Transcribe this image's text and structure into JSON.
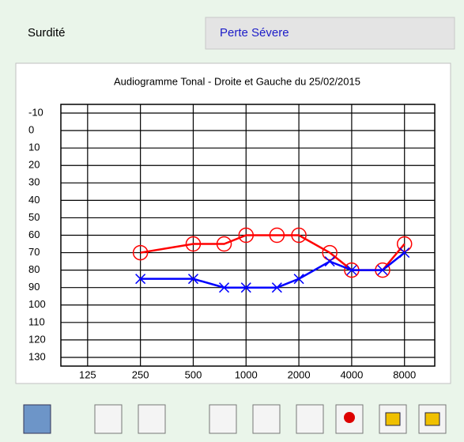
{
  "form": {
    "label": "Surdité",
    "value": "Perte Sévere"
  },
  "chart_data": {
    "type": "line",
    "title": "Audiogramme Tonal - Droite et Gauche du 25/02/2015",
    "x": [
      250,
      500,
      750,
      1000,
      1500,
      2000,
      3000,
      4000,
      6000,
      8000
    ],
    "xlog": true,
    "xlim": [
      88,
      11900
    ],
    "xticks": [
      125,
      250,
      500,
      1000,
      2000,
      4000,
      8000
    ],
    "ylim": [
      -15,
      135
    ],
    "yinverted": true,
    "yticks": [
      -10,
      0,
      10,
      20,
      30,
      40,
      50,
      60,
      70,
      80,
      90,
      100,
      110,
      120,
      130
    ],
    "grid": true,
    "series": [
      {
        "color": "#ff0000",
        "marker": "circle",
        "values": [
          70,
          65,
          65,
          60,
          60,
          60,
          70,
          80,
          80,
          65
        ]
      },
      {
        "color": "#0000ff",
        "marker": "cross",
        "values": [
          85,
          85,
          90,
          90,
          90,
          85,
          75,
          80,
          80,
          70
        ]
      }
    ]
  }
}
